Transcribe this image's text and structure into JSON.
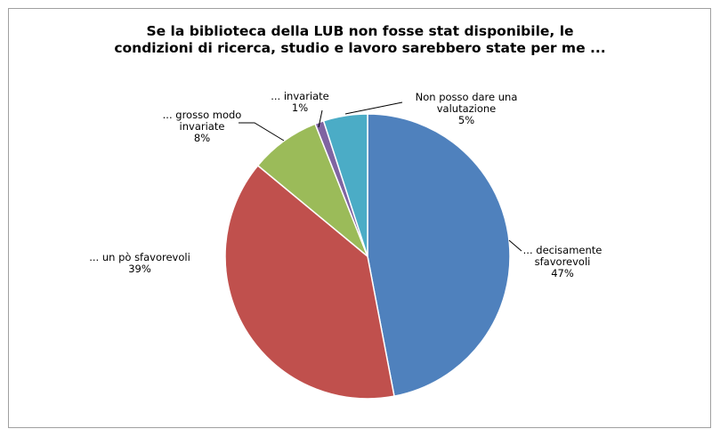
{
  "chart_data": {
    "type": "pie",
    "title": "Se la biblioteca della LUB non fosse stat disponibile, le condizioni di ricerca, studio e lavoro sarebbero state per me ...",
    "title_lines": [
      "Se la biblioteca della LUB non fosse stat disponibile, le",
      "condizioni di ricerca, studio e lavoro sarebbero state per me ..."
    ],
    "legend": "none",
    "slices": [
      {
        "label": "... decisamente sfavorevoli",
        "label_lines": [
          "... decisamente",
          "sfavorevoli"
        ],
        "value": 47,
        "percent_label": "47%",
        "color": "#4f81bd"
      },
      {
        "label": "... un pò sfavorevoli",
        "label_lines": [
          "... un pò sfavorevoli"
        ],
        "value": 39,
        "percent_label": "39%",
        "color": "#c0504d"
      },
      {
        "label": "... grosso modo invariate",
        "label_lines": [
          "... grosso modo",
          "invariate"
        ],
        "value": 8,
        "percent_label": "8%",
        "color": "#9bbb59"
      },
      {
        "label": "... invariate",
        "label_lines": [
          "... invariate"
        ],
        "value": 1,
        "percent_label": "1%",
        "color": "#8064a2"
      },
      {
        "label": "Non posso dare una valutazione",
        "label_lines": [
          "Non posso dare una",
          "valutazione"
        ],
        "value": 5,
        "percent_label": "5%",
        "color": "#4bacc6"
      }
    ]
  }
}
